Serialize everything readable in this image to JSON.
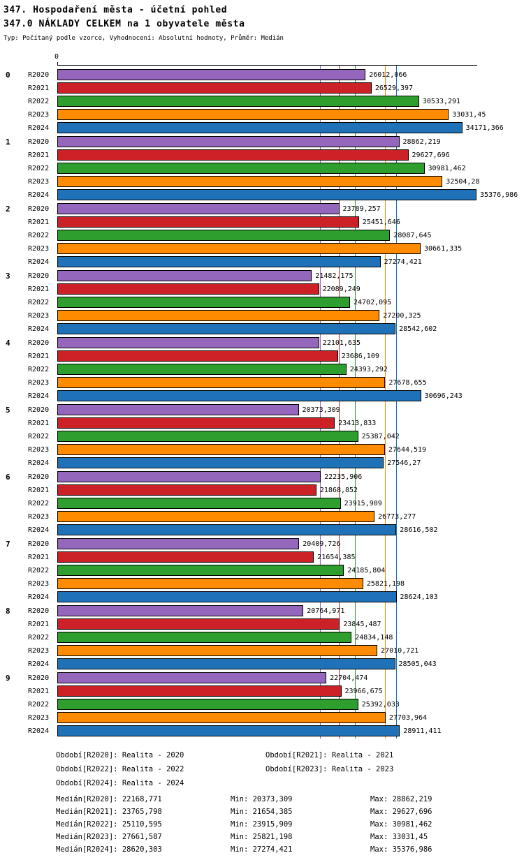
{
  "header": {
    "title": "347. Hospodaření města - účetní pohled",
    "subtitle": "347.0 NÁKLADY CELKEM na 1 obyvatele města",
    "meta": "Typ: Počítaný podle vzorce, Vyhodnocení: Absolutní hodnoty, Průměr: Medián"
  },
  "chart_data": {
    "type": "bar",
    "orientation": "horizontal",
    "axis_origin_label": "0",
    "xlim": [
      0,
      35376.986
    ],
    "grid": "median-lines-per-series",
    "legend_position": "bottom",
    "groups": [
      "0",
      "1",
      "2",
      "3",
      "4",
      "5",
      "6",
      "7",
      "8",
      "9"
    ],
    "series": [
      {
        "name": "R2020",
        "color": "#9467BD",
        "median": 22168.771,
        "values": [
          26012.066,
          28862.219,
          23789.257,
          21482.175,
          22101.635,
          20373.309,
          22235.906,
          20409.726,
          20764.971,
          22704.474
        ]
      },
      {
        "name": "R2021",
        "color": "#CB2127",
        "median": 23765.798,
        "values": [
          26529.397,
          29627.696,
          25451.646,
          22089.249,
          23686.109,
          23413.833,
          21868.852,
          21654.385,
          23845.487,
          23966.675
        ]
      },
      {
        "name": "R2022",
        "color": "#2E9E2E",
        "median": 25110.595,
        "values": [
          30533.291,
          30981.462,
          28087.645,
          24702.095,
          24393.292,
          25387.042,
          23915.909,
          24185.804,
          24834.148,
          25392.033
        ]
      },
      {
        "name": "R2023",
        "color": "#FF8C00",
        "median": 27661.587,
        "values": [
          33031.45,
          32504.28,
          30661.335,
          27200.325,
          27678.655,
          27644.519,
          26773.277,
          25821.198,
          27010.721,
          27703.964
        ]
      },
      {
        "name": "R2024",
        "color": "#1F72B8",
        "median": 28620.303,
        "values": [
          34171.366,
          35376.986,
          27274.421,
          28542.602,
          30696.243,
          27546.27,
          28616.502,
          28624.103,
          28505.043,
          28911.411
        ]
      }
    ]
  },
  "legend": {
    "rows": [
      {
        "left": "Období[R2020]: Realita - 2020",
        "right": "Období[R2021]: Realita - 2021"
      },
      {
        "left": "Období[R2022]: Realita - 2022",
        "right": "Období[R2023]: Realita - 2023"
      },
      {
        "left": "Období[R2024]: Realita - 2024",
        "right": ""
      }
    ]
  },
  "stats": {
    "rows": [
      {
        "median": "Medián[R2020]: 22168,771",
        "min": "Min: 20373,309",
        "max": "Max: 28862,219"
      },
      {
        "median": "Medián[R2021]: 23765,798",
        "min": "Min: 21654,385",
        "max": "Max: 29627,696"
      },
      {
        "median": "Medián[R2022]: 25110,595",
        "min": "Min: 23915,909",
        "max": "Max: 30981,462"
      },
      {
        "median": "Medián[R2023]: 27661,587",
        "min": "Min: 25821,198",
        "max": "Max: 33031,45"
      },
      {
        "median": "Medián[R2024]: 28620,303",
        "min": "Min: 27274,421",
        "max": "Max: 35376,986"
      }
    ]
  }
}
